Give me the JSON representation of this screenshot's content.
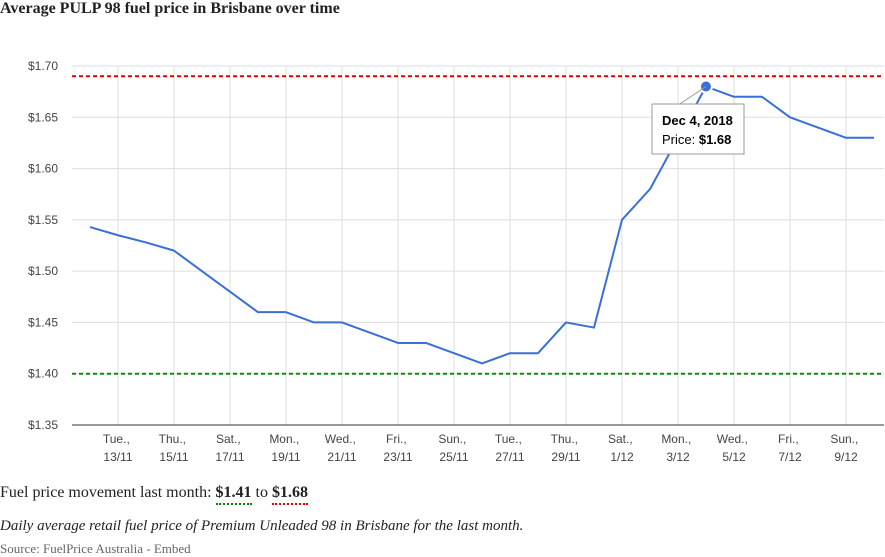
{
  "chart_data": {
    "type": "line",
    "title": "Average PULP 98 fuel price in Brisbane over time",
    "categories": [
      null,
      "Tue., 13/11",
      null,
      "Thu., 15/11",
      null,
      "Sat., 17/11",
      null,
      "Mon., 19/11",
      null,
      "Wed., 21/11",
      null,
      "Fri., 23/11",
      null,
      "Sun., 25/11",
      null,
      "Tue., 27/11",
      null,
      "Thu., 29/11",
      null,
      "Sat., 1/12",
      null,
      "Mon., 3/12",
      null,
      "Wed., 5/12",
      null,
      "Fri., 7/12",
      null,
      "Sun., 9/12",
      null
    ],
    "series": [
      {
        "name": "Price",
        "color": "#3a6fd8",
        "values": [
          1.543,
          1.535,
          1.528,
          1.52,
          1.5,
          1.48,
          1.46,
          1.46,
          1.45,
          1.45,
          1.44,
          1.43,
          1.43,
          1.42,
          1.41,
          1.42,
          1.42,
          1.45,
          1.445,
          1.55,
          1.58,
          1.63,
          1.68,
          1.67,
          1.67,
          1.65,
          1.64,
          1.63,
          1.63
        ]
      }
    ],
    "ylim": [
      1.35,
      1.7
    ],
    "yticks": [
      {
        "value": 1.35,
        "label": "$1.35"
      },
      {
        "value": 1.4,
        "label": "$1.40"
      },
      {
        "value": 1.45,
        "label": "$1.45"
      },
      {
        "value": 1.5,
        "label": "$1.50"
      },
      {
        "value": 1.55,
        "label": "$1.55"
      },
      {
        "value": 1.6,
        "label": "$1.60"
      },
      {
        "value": 1.65,
        "label": "$1.65"
      },
      {
        "value": 1.7,
        "label": "$1.70"
      }
    ],
    "grid": true,
    "reference_lines": [
      {
        "value": 1.69,
        "color": "#e00000"
      },
      {
        "value": 1.4,
        "color": "#118811"
      }
    ],
    "tooltip": {
      "title": "Dec 4, 2018",
      "label": "Price:",
      "value_label": "$1.68"
    }
  },
  "summary": {
    "label": "Fuel price movement last month:",
    "low": "$1.41",
    "to": "to",
    "high": "$1.68",
    "caption": "Daily average retail fuel price of Premium Unleaded 98 in Brisbane for the last month.",
    "source": "Source: FuelPrice Australia",
    "embed": "Embed"
  }
}
